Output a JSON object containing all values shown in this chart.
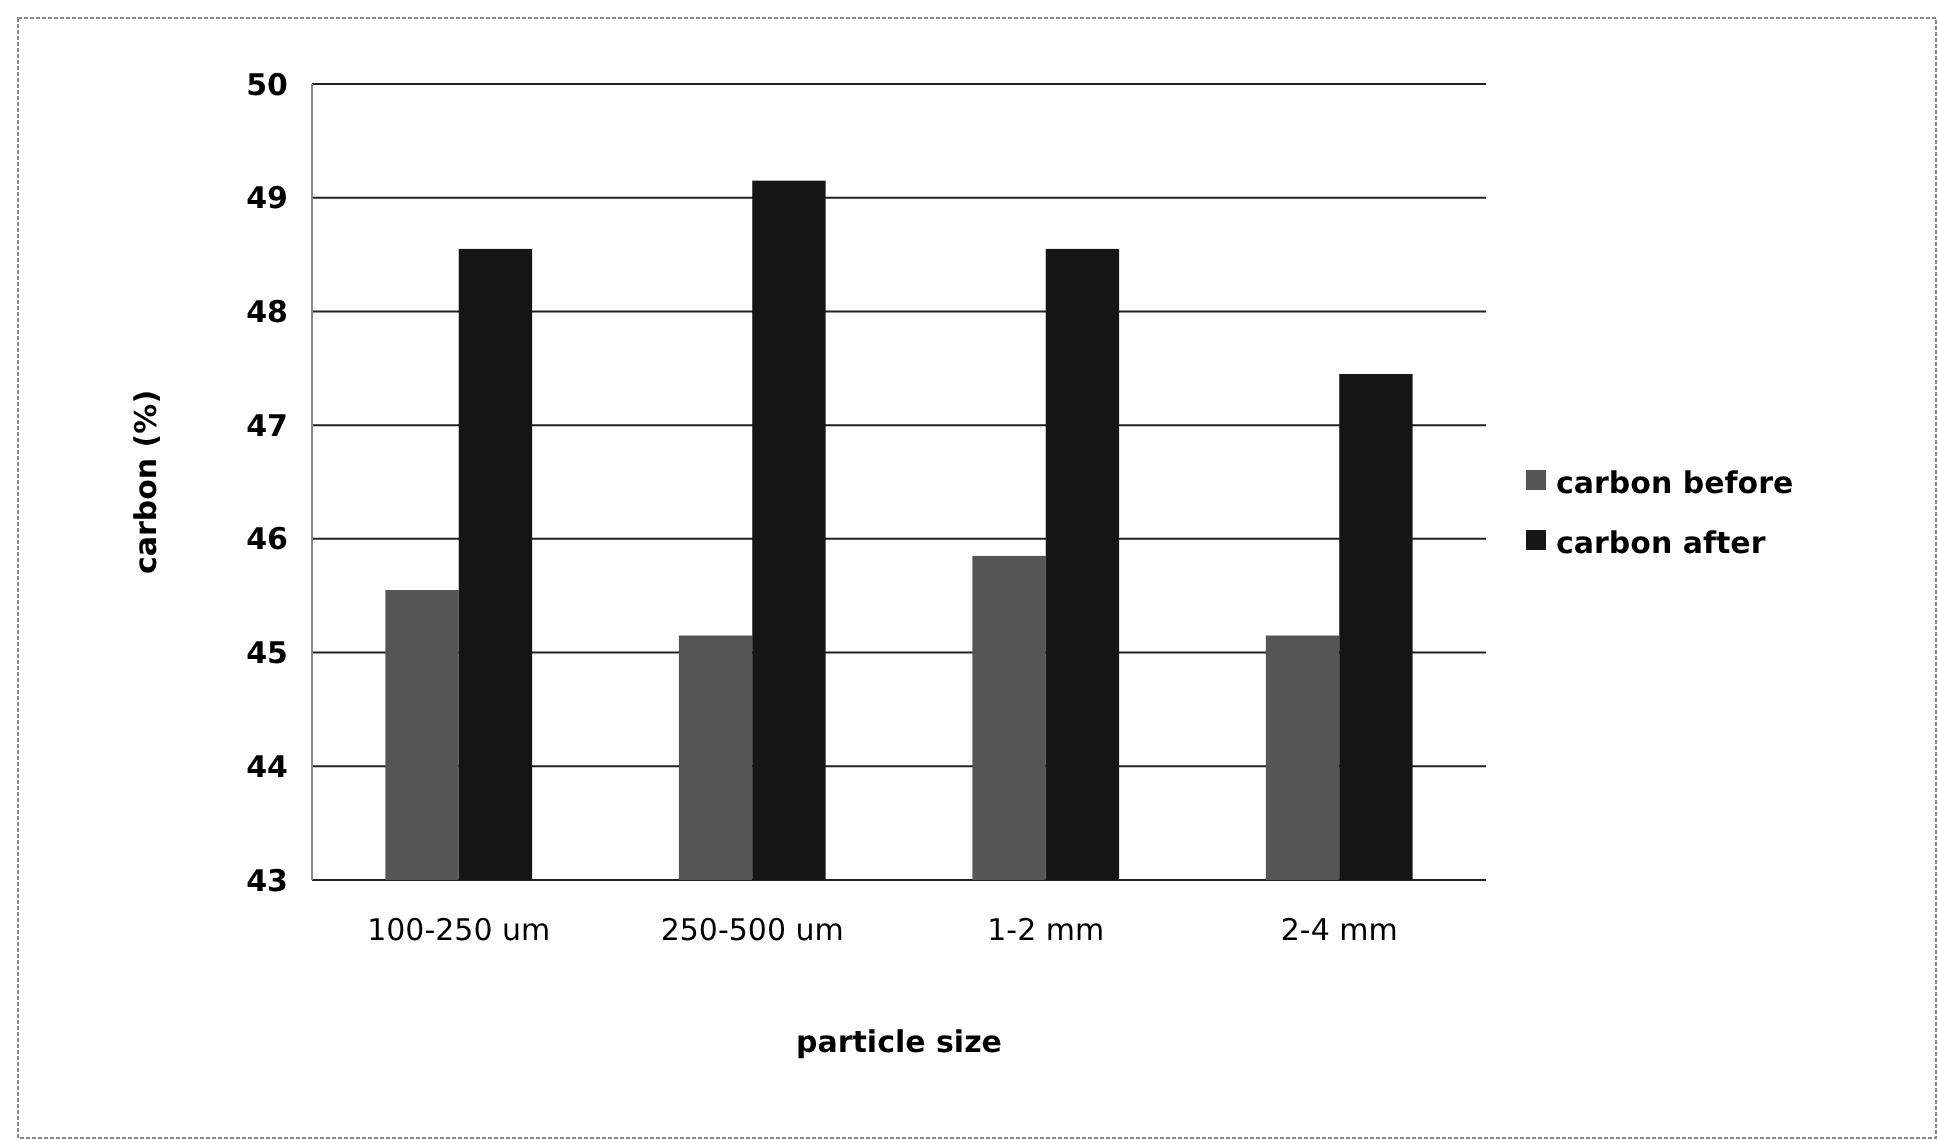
{
  "chart_data": {
    "type": "bar",
    "xlabel": "particle size",
    "ylabel": "carbon (%)",
    "categories": [
      "100-250 um",
      "250-500 um",
      "1-2 mm",
      "2-4 mm"
    ],
    "series": [
      {
        "name": "carbon before",
        "color": "#555555",
        "values": [
          45.55,
          45.15,
          45.85,
          45.15
        ]
      },
      {
        "name": "carbon after",
        "color": "#151515",
        "values": [
          48.55,
          49.15,
          48.55,
          47.45
        ]
      }
    ],
    "ylim": [
      43,
      50
    ],
    "yticks": [
      43,
      44,
      45,
      46,
      47,
      48,
      49,
      50
    ],
    "grid": "y",
    "legend": "right"
  }
}
